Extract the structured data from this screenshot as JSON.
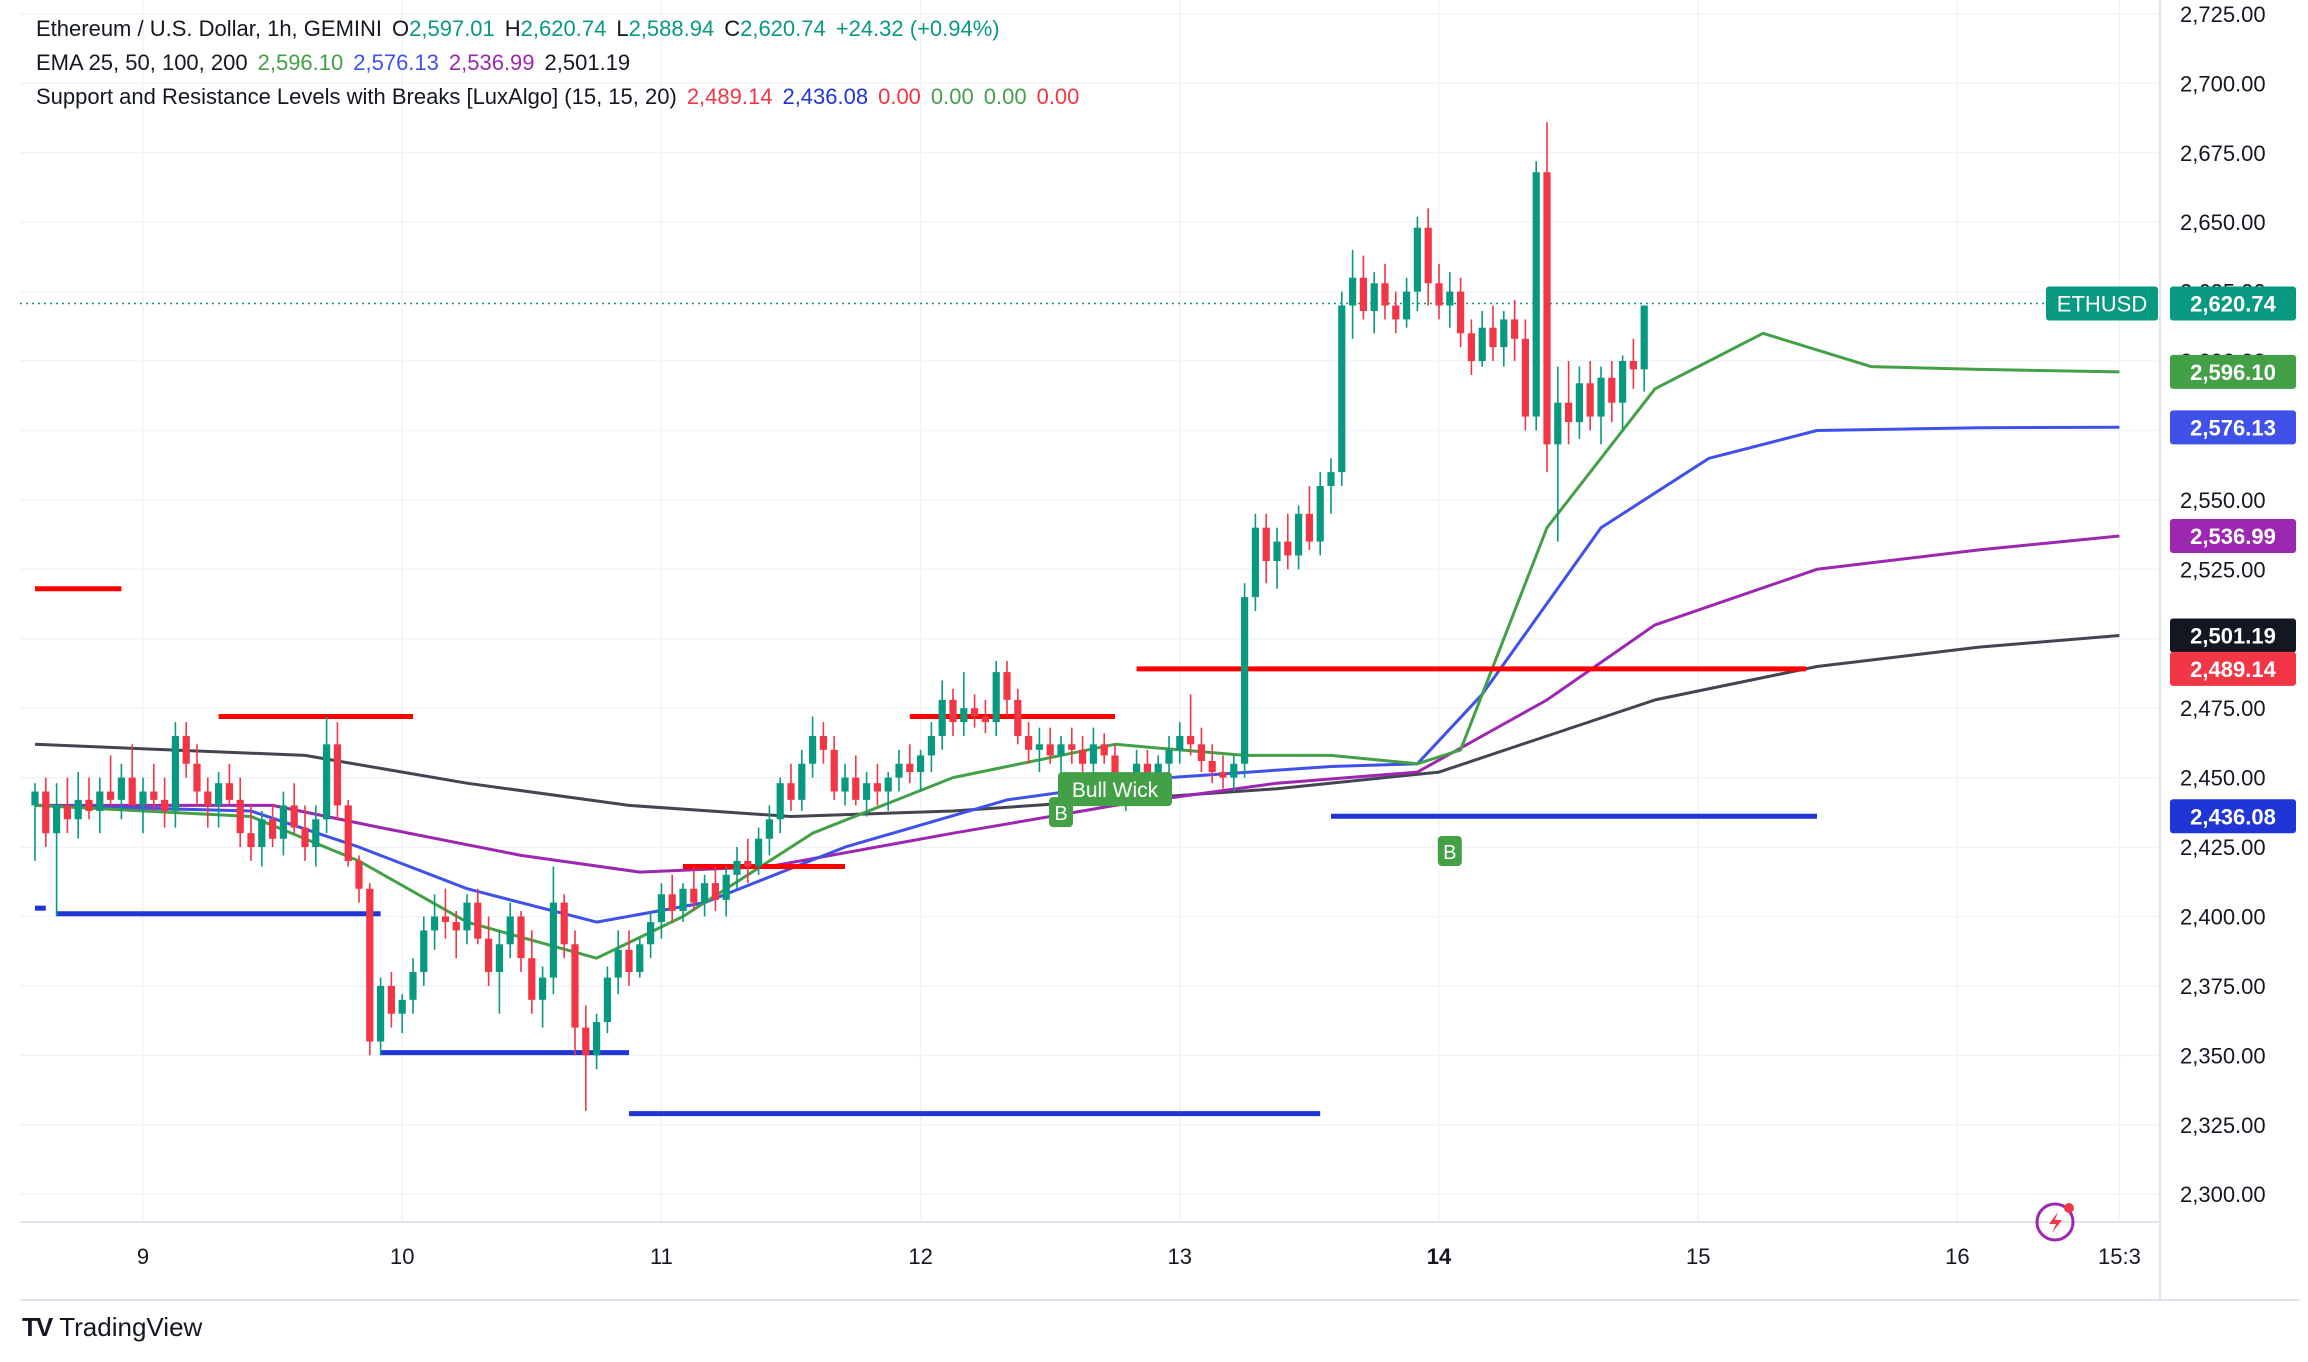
{
  "legend": {
    "symbol": "Ethereum / U.S. Dollar, 1h, GEMINI",
    "o_label": "O",
    "o": "2,597.01",
    "h_label": "H",
    "h": "2,620.74",
    "l_label": "L",
    "l": "2,588.94",
    "c_label": "C",
    "c": "2,620.74",
    "change": "+24.32 (+0.94%)",
    "ema_label": "EMA 25, 50, 100, 200",
    "ema25": "2,596.10",
    "ema50": "2,576.13",
    "ema100": "2,536.99",
    "ema200": "2,501.19",
    "sr_label": "Support and Resistance Levels with Breaks [LuxAlgo] (15, 15, 20)",
    "sr1": "2,489.14",
    "sr2": "2,436.08",
    "sr3": "0.00",
    "sr4": "0.00",
    "sr5": "0.00",
    "sr6": "0.00"
  },
  "brand": {
    "name": "TradingView"
  },
  "colors": {
    "up": "#089981",
    "down": "#f23645",
    "ema25": "#43a047",
    "ema50": "#3f51e8",
    "ema100": "#9c27b0",
    "ema200": "#434651",
    "resistance": "#ff0000",
    "support": "#1f35d6",
    "bull": "#43a047"
  },
  "chart_data": {
    "type": "candlestick",
    "title": "Ethereum / U.S. Dollar, 1h, GEMINI",
    "ylim": [
      2290,
      2730
    ],
    "y_ticks": [
      "2,300.00",
      "2,325.00",
      "2,350.00",
      "2,375.00",
      "2,400.00",
      "2,425.00",
      "2,450.00",
      "2,475.00",
      "2,500.00",
      "2,525.00",
      "2,550.00",
      "2,575.00",
      "2,600.00",
      "2,625.00",
      "2,650.00",
      "2,675.00",
      "2,700.00",
      "2,725.00"
    ],
    "x_ticks": [
      {
        "label": "9",
        "bar": 10
      },
      {
        "label": "10",
        "bar": 34
      },
      {
        "label": "11",
        "bar": 58
      },
      {
        "label": "12",
        "bar": 82
      },
      {
        "label": "13",
        "bar": 106
      },
      {
        "label": "14",
        "bar": 130
      },
      {
        "label": "15",
        "bar": 154
      },
      {
        "label": "16",
        "bar": 178
      },
      {
        "label": "15:3",
        "bar": 193
      }
    ],
    "candles": [
      [
        2440,
        2448,
        2420,
        2445
      ],
      [
        2445,
        2450,
        2425,
        2430
      ],
      [
        2430,
        2448,
        2400,
        2440
      ],
      [
        2440,
        2450,
        2430,
        2435
      ],
      [
        2435,
        2452,
        2428,
        2442
      ],
      [
        2442,
        2450,
        2435,
        2438
      ],
      [
        2438,
        2450,
        2430,
        2445
      ],
      [
        2445,
        2458,
        2440,
        2442
      ],
      [
        2442,
        2455,
        2435,
        2450
      ],
      [
        2450,
        2462,
        2442,
        2440
      ],
      [
        2440,
        2450,
        2430,
        2445
      ],
      [
        2445,
        2455,
        2438,
        2442
      ],
      [
        2442,
        2450,
        2432,
        2438
      ],
      [
        2438,
        2470,
        2432,
        2465
      ],
      [
        2465,
        2470,
        2450,
        2455
      ],
      [
        2455,
        2462,
        2440,
        2445
      ],
      [
        2445,
        2450,
        2432,
        2440
      ],
      [
        2440,
        2452,
        2432,
        2448
      ],
      [
        2448,
        2455,
        2440,
        2442
      ],
      [
        2442,
        2450,
        2425,
        2430
      ],
      [
        2430,
        2440,
        2420,
        2425
      ],
      [
        2425,
        2438,
        2418,
        2435
      ],
      [
        2435,
        2440,
        2425,
        2428
      ],
      [
        2428,
        2445,
        2422,
        2440
      ],
      [
        2440,
        2448,
        2430,
        2432
      ],
      [
        2432,
        2440,
        2420,
        2425
      ],
      [
        2425,
        2440,
        2418,
        2435
      ],
      [
        2435,
        2472,
        2430,
        2462
      ],
      [
        2462,
        2470,
        2435,
        2440
      ],
      [
        2440,
        2442,
        2418,
        2420
      ],
      [
        2420,
        2422,
        2405,
        2410
      ],
      [
        2410,
        2412,
        2350,
        2355
      ],
      [
        2355,
        2378,
        2350,
        2375
      ],
      [
        2375,
        2380,
        2360,
        2365
      ],
      [
        2365,
        2372,
        2358,
        2370
      ],
      [
        2370,
        2385,
        2365,
        2380
      ],
      [
        2380,
        2400,
        2375,
        2395
      ],
      [
        2395,
        2408,
        2388,
        2400
      ],
      [
        2400,
        2410,
        2392,
        2398
      ],
      [
        2398,
        2402,
        2385,
        2395
      ],
      [
        2395,
        2408,
        2390,
        2405
      ],
      [
        2405,
        2410,
        2390,
        2392
      ],
      [
        2392,
        2400,
        2375,
        2380
      ],
      [
        2380,
        2395,
        2365,
        2390
      ],
      [
        2390,
        2405,
        2385,
        2400
      ],
      [
        2400,
        2402,
        2380,
        2385
      ],
      [
        2385,
        2395,
        2365,
        2370
      ],
      [
        2370,
        2382,
        2360,
        2378
      ],
      [
        2378,
        2418,
        2372,
        2405
      ],
      [
        2405,
        2408,
        2385,
        2390
      ],
      [
        2390,
        2395,
        2350,
        2360
      ],
      [
        2360,
        2368,
        2330,
        2350
      ],
      [
        2350,
        2365,
        2345,
        2362
      ],
      [
        2362,
        2382,
        2358,
        2378
      ],
      [
        2378,
        2395,
        2372,
        2388
      ],
      [
        2388,
        2395,
        2375,
        2380
      ],
      [
        2380,
        2392,
        2378,
        2390
      ],
      [
        2390,
        2402,
        2385,
        2398
      ],
      [
        2398,
        2412,
        2392,
        2408
      ],
      [
        2408,
        2415,
        2398,
        2402
      ],
      [
        2402,
        2412,
        2398,
        2410
      ],
      [
        2410,
        2418,
        2402,
        2405
      ],
      [
        2405,
        2415,
        2400,
        2412
      ],
      [
        2412,
        2418,
        2402,
        2406
      ],
      [
        2406,
        2418,
        2400,
        2415
      ],
      [
        2415,
        2425,
        2410,
        2420
      ],
      [
        2420,
        2428,
        2412,
        2418
      ],
      [
        2418,
        2432,
        2415,
        2428
      ],
      [
        2428,
        2440,
        2422,
        2435
      ],
      [
        2435,
        2450,
        2430,
        2448
      ],
      [
        2448,
        2455,
        2438,
        2442
      ],
      [
        2442,
        2460,
        2438,
        2455
      ],
      [
        2455,
        2472,
        2450,
        2465
      ],
      [
        2465,
        2470,
        2455,
        2460
      ],
      [
        2460,
        2465,
        2442,
        2445
      ],
      [
        2445,
        2455,
        2440,
        2450
      ],
      [
        2450,
        2458,
        2440,
        2442
      ],
      [
        2442,
        2452,
        2436,
        2448
      ],
      [
        2448,
        2455,
        2440,
        2445
      ],
      [
        2445,
        2452,
        2438,
        2450
      ],
      [
        2450,
        2460,
        2445,
        2455
      ],
      [
        2455,
        2462,
        2448,
        2452
      ],
      [
        2452,
        2460,
        2445,
        2458
      ],
      [
        2458,
        2470,
        2452,
        2465
      ],
      [
        2465,
        2485,
        2460,
        2478
      ],
      [
        2478,
        2482,
        2465,
        2470
      ],
      [
        2470,
        2488,
        2465,
        2475
      ],
      [
        2475,
        2480,
        2468,
        2472
      ],
      [
        2472,
        2478,
        2466,
        2470
      ],
      [
        2470,
        2492,
        2465,
        2488
      ],
      [
        2488,
        2492,
        2472,
        2478
      ],
      [
        2478,
        2482,
        2462,
        2465
      ],
      [
        2465,
        2470,
        2455,
        2460
      ],
      [
        2460,
        2468,
        2452,
        2462
      ],
      [
        2462,
        2468,
        2455,
        2458
      ],
      [
        2458,
        2465,
        2450,
        2462
      ],
      [
        2462,
        2468,
        2455,
        2460
      ],
      [
        2460,
        2465,
        2452,
        2455
      ],
      [
        2455,
        2468,
        2450,
        2462
      ],
      [
        2462,
        2466,
        2455,
        2458
      ],
      [
        2458,
        2462,
        2440,
        2445
      ],
      [
        2445,
        2452,
        2438,
        2448
      ],
      [
        2448,
        2460,
        2442,
        2455
      ],
      [
        2455,
        2460,
        2445,
        2450
      ],
      [
        2450,
        2458,
        2442,
        2455
      ],
      [
        2455,
        2465,
        2450,
        2460
      ],
      [
        2460,
        2470,
        2455,
        2465
      ],
      [
        2465,
        2480,
        2458,
        2462
      ],
      [
        2462,
        2468,
        2452,
        2456
      ],
      [
        2456,
        2462,
        2448,
        2452
      ],
      [
        2452,
        2458,
        2446,
        2450
      ],
      [
        2450,
        2458,
        2445,
        2455
      ],
      [
        2455,
        2520,
        2450,
        2515
      ],
      [
        2515,
        2545,
        2510,
        2540
      ],
      [
        2540,
        2545,
        2520,
        2528
      ],
      [
        2528,
        2540,
        2518,
        2535
      ],
      [
        2535,
        2545,
        2525,
        2530
      ],
      [
        2530,
        2548,
        2525,
        2545
      ],
      [
        2545,
        2555,
        2532,
        2535
      ],
      [
        2535,
        2560,
        2530,
        2555
      ],
      [
        2555,
        2565,
        2545,
        2560
      ],
      [
        2560,
        2625,
        2555,
        2620
      ],
      [
        2620,
        2640,
        2608,
        2630
      ],
      [
        2630,
        2638,
        2615,
        2618
      ],
      [
        2618,
        2632,
        2610,
        2628
      ],
      [
        2628,
        2635,
        2615,
        2620
      ],
      [
        2620,
        2625,
        2610,
        2615
      ],
      [
        2615,
        2630,
        2612,
        2625
      ],
      [
        2625,
        2652,
        2618,
        2648
      ],
      [
        2648,
        2655,
        2620,
        2628
      ],
      [
        2628,
        2635,
        2615,
        2620
      ],
      [
        2620,
        2632,
        2612,
        2625
      ],
      [
        2625,
        2630,
        2605,
        2610
      ],
      [
        2610,
        2615,
        2595,
        2600
      ],
      [
        2600,
        2618,
        2598,
        2612
      ],
      [
        2612,
        2620,
        2600,
        2605
      ],
      [
        2605,
        2618,
        2598,
        2615
      ],
      [
        2615,
        2622,
        2600,
        2608
      ],
      [
        2608,
        2615,
        2575,
        2580
      ],
      [
        2580,
        2672,
        2575,
        2668
      ],
      [
        2668,
        2686,
        2560,
        2570
      ],
      [
        2570,
        2598,
        2535,
        2585
      ],
      [
        2585,
        2600,
        2570,
        2578
      ],
      [
        2578,
        2598,
        2572,
        2592
      ],
      [
        2592,
        2600,
        2575,
        2580
      ],
      [
        2580,
        2598,
        2570,
        2594
      ],
      [
        2594,
        2600,
        2578,
        2585
      ],
      [
        2585,
        2602,
        2575,
        2600
      ],
      [
        2600,
        2608,
        2590,
        2597
      ],
      [
        2597,
        2620,
        2589,
        2620
      ]
    ],
    "ema25": [
      [
        0,
        2440
      ],
      [
        20,
        2436
      ],
      [
        30,
        2420
      ],
      [
        40,
        2398
      ],
      [
        52,
        2385
      ],
      [
        60,
        2400
      ],
      [
        72,
        2430
      ],
      [
        85,
        2450
      ],
      [
        100,
        2462
      ],
      [
        112,
        2458
      ],
      [
        120,
        2458
      ],
      [
        128,
        2455
      ],
      [
        132,
        2460
      ],
      [
        140,
        2540
      ],
      [
        150,
        2590
      ],
      [
        160,
        2610
      ],
      [
        170,
        2598
      ],
      [
        180,
        2597
      ],
      [
        193,
        2596.1
      ]
    ],
    "ema50": [
      [
        0,
        2440
      ],
      [
        20,
        2438
      ],
      [
        30,
        2425
      ],
      [
        40,
        2410
      ],
      [
        52,
        2398
      ],
      [
        62,
        2405
      ],
      [
        75,
        2425
      ],
      [
        90,
        2442
      ],
      [
        105,
        2450
      ],
      [
        120,
        2454
      ],
      [
        128,
        2455
      ],
      [
        134,
        2480
      ],
      [
        145,
        2540
      ],
      [
        155,
        2565
      ],
      [
        165,
        2575
      ],
      [
        180,
        2576
      ],
      [
        193,
        2576.13
      ]
    ],
    "ema100": [
      [
        0,
        2440
      ],
      [
        22,
        2440
      ],
      [
        32,
        2432
      ],
      [
        45,
        2422
      ],
      [
        56,
        2416
      ],
      [
        68,
        2418
      ],
      [
        85,
        2430
      ],
      [
        100,
        2440
      ],
      [
        115,
        2448
      ],
      [
        128,
        2452
      ],
      [
        140,
        2478
      ],
      [
        150,
        2505
      ],
      [
        165,
        2525
      ],
      [
        180,
        2532
      ],
      [
        193,
        2536.99
      ]
    ],
    "ema200": [
      [
        0,
        2462
      ],
      [
        25,
        2458
      ],
      [
        40,
        2448
      ],
      [
        55,
        2440
      ],
      [
        70,
        2436
      ],
      [
        85,
        2438
      ],
      [
        100,
        2442
      ],
      [
        115,
        2446
      ],
      [
        130,
        2452
      ],
      [
        140,
        2465
      ],
      [
        150,
        2478
      ],
      [
        165,
        2490
      ],
      [
        180,
        2497
      ],
      [
        193,
        2501.19
      ]
    ],
    "resistance_lines": [
      [
        0,
        8,
        2518
      ],
      [
        17,
        35,
        2472
      ],
      [
        60,
        75,
        2418
      ],
      [
        81,
        100,
        2472
      ],
      [
        102,
        164,
        2489.14
      ]
    ],
    "support_lines": [
      [
        0,
        1,
        2403
      ],
      [
        2,
        32,
        2401
      ],
      [
        32,
        55,
        2351
      ],
      [
        55,
        119,
        2329
      ],
      [
        120,
        165,
        2436.08
      ]
    ],
    "markers": [
      {
        "type": "B",
        "bar": 95,
        "price": 2443
      },
      {
        "type": "bull_wick",
        "text": "Bull Wick",
        "bar": 100,
        "price": 2452
      },
      {
        "type": "B",
        "bar": 131,
        "price": 2429
      }
    ],
    "price_labels": [
      {
        "text": "ETHUSD",
        "value": "2,620.74",
        "price": 2620.74,
        "color": "#089981"
      },
      {
        "value": "2,596.10",
        "price": 2596.1,
        "color": "#43a047"
      },
      {
        "value": "2,576.13",
        "price": 2576.13,
        "color": "#3f51e8"
      },
      {
        "value": "2,536.99",
        "price": 2536.99,
        "color": "#9c27b0"
      },
      {
        "value": "2,501.19",
        "price": 2501.19,
        "color": "#131722"
      },
      {
        "value": "2,489.14",
        "price": 2489.14,
        "color": "#f23645"
      },
      {
        "value": "2,436.08",
        "price": 2436.08,
        "color": "#1f35d6"
      }
    ],
    "last_price": 2620.74
  }
}
